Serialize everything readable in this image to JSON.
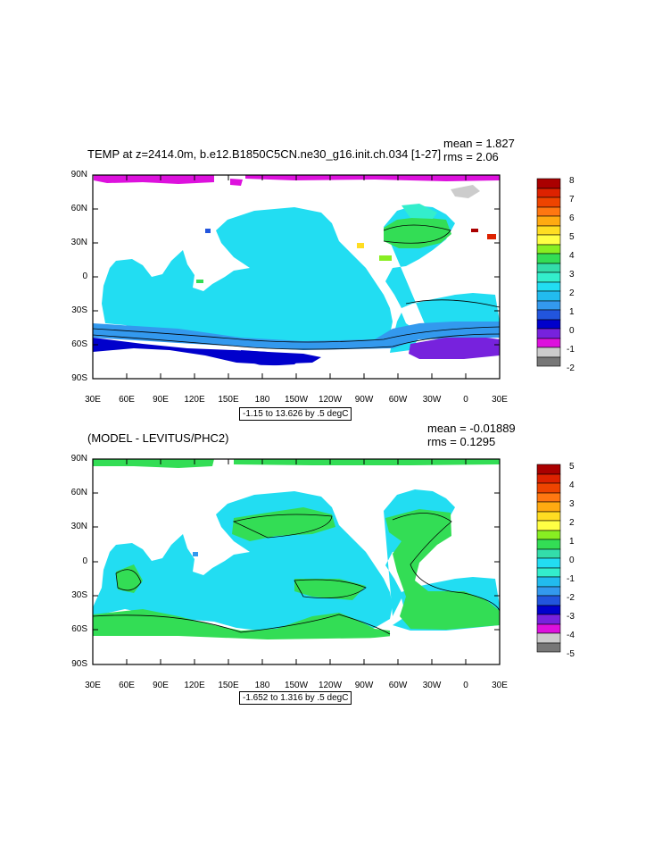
{
  "colors": {
    "ocean_cyan": "#22ddf2",
    "ocean_light": "#33eecc",
    "green": "#33dd55",
    "blue": "#2255dd",
    "navy": "#0000cc",
    "purple": "#7722dd",
    "magenta": "#dd11dd",
    "grey_light": "#cccccc",
    "grey_dark": "#777777",
    "red_dark": "#aa0000",
    "red": "#dd2200",
    "orange": "#ff7711",
    "orange_light": "#ffaa11",
    "yellow": "#ffdd22",
    "yellow_light": "#ffff44",
    "lime": "#88ee22",
    "teal": "#33ddaa",
    "sky": "#3399ee"
  },
  "plot1": {
    "title": "TEMP at z=2414.0m, b.e12.B1850C5CN.ne30_g16.init.ch.034 [1-27]",
    "mean_text": "mean = 1.827",
    "rms_text": "rms = 2.06",
    "range_text": "-1.15 to 13.626 by .5 degC",
    "legend_labels": [
      "8",
      "7",
      "6",
      "5",
      "4",
      "3",
      "2",
      "1",
      "0",
      "-1",
      "-2"
    ]
  },
  "plot2": {
    "title": "(MODEL - LEVITUS/PHC2)",
    "mean_text": "mean = -0.01889",
    "rms_text": "rms = 0.1295",
    "range_text": "-1.652 to 1.316 by .5 degC",
    "legend_labels": [
      "5",
      "4",
      "3",
      "2",
      "1",
      "0",
      "-1",
      "-2",
      "-3",
      "-4",
      "-5"
    ]
  },
  "axes": {
    "lat_labels": [
      "90N",
      "60N",
      "30N",
      "0",
      "30S",
      "60S",
      "90S"
    ],
    "lon_labels": [
      "30E",
      "60E",
      "90E",
      "120E",
      "150E",
      "180",
      "150W",
      "120W",
      "90W",
      "60W",
      "30W",
      "0",
      "30E"
    ]
  }
}
